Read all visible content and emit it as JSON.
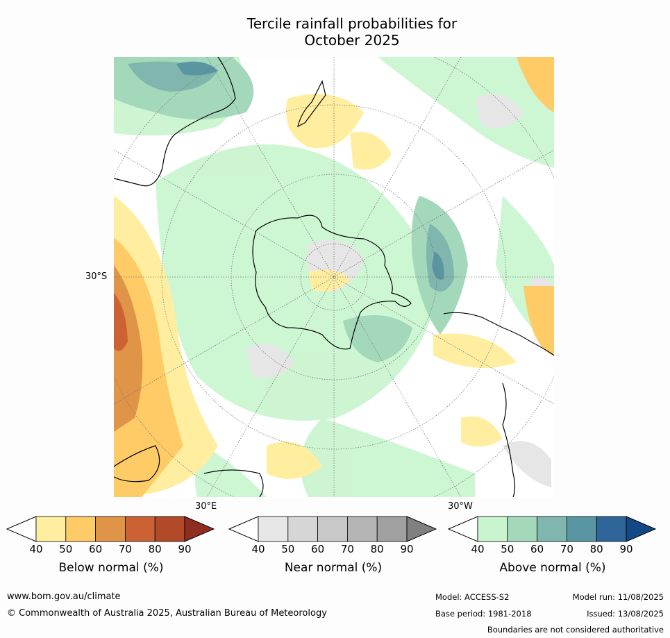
{
  "title_line1": "Tercile rainfall probabilities for",
  "title_line2": "October 2025",
  "map": {
    "label_lat": "30°S",
    "label_e": "30°E",
    "label_w": "30°W"
  },
  "colorbars": [
    {
      "caption": "Below normal (%)",
      "ticks": [
        "40",
        "50",
        "60",
        "70",
        "80",
        "90"
      ],
      "colors": [
        "#ffeea0",
        "#fecb66",
        "#e09448",
        "#cc6233",
        "#b04a28",
        "#8f2e20"
      ]
    },
    {
      "caption": "Near normal (%)",
      "ticks": [
        "40",
        "50",
        "60",
        "70",
        "80",
        "90"
      ],
      "colors": [
        "#e6e6e6",
        "#d6d6d6",
        "#c8c8c8",
        "#b4b4b4",
        "#a0a0a0",
        "#808080"
      ]
    },
    {
      "caption": "Above normal (%)",
      "ticks": [
        "40",
        "50",
        "60",
        "70",
        "80",
        "90"
      ],
      "colors": [
        "#c8f5cd",
        "#a4d8bb",
        "#80b6ad",
        "#5a95a2",
        "#2f6498",
        "#114a87"
      ]
    }
  ],
  "footer": {
    "url": "www.bom.gov.au/climate",
    "copyright": "© Commonwealth of Australia 2025, Australian Bureau of Meteorology",
    "model": "Model: ACCESS-S2",
    "base_period": "Base period: 1981-2018",
    "model_run": "Model run: 11/08/2025",
    "issued": "Issued: 13/08/2025",
    "disclaimer": "Boundaries are not considered authoritative"
  }
}
